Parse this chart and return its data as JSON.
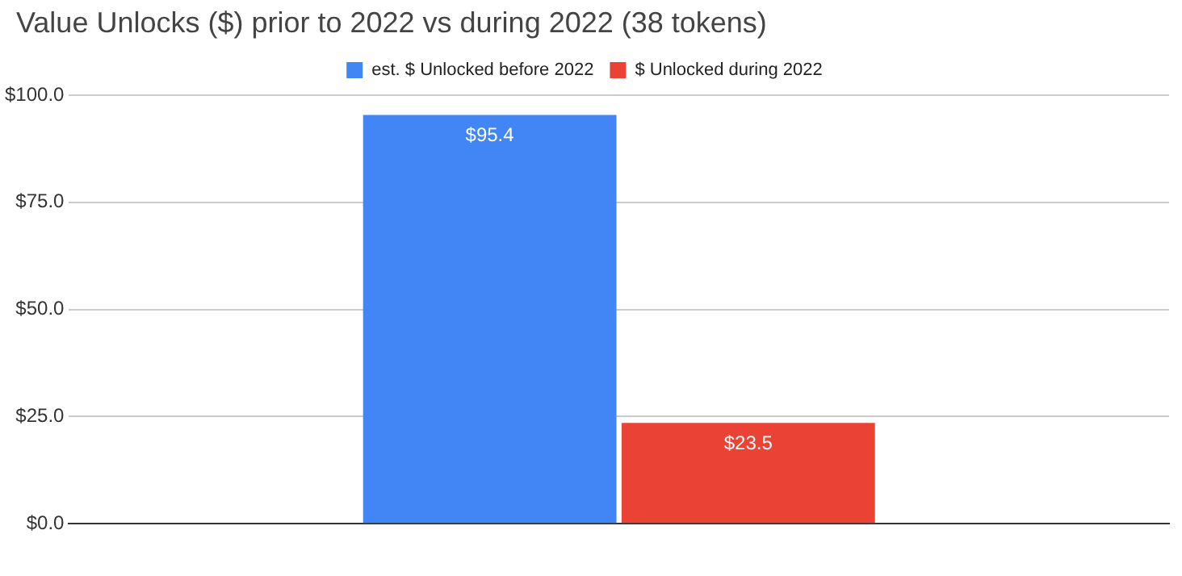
{
  "chart_data": {
    "type": "bar",
    "title": "Value Unlocks ($) prior to 2022 vs during 2022 (38 tokens)",
    "categories": [
      null
    ],
    "series": [
      {
        "name": "est. $ Unlocked before 2022",
        "color": "#4285f4",
        "values": [
          95.4
        ],
        "value_labels": [
          "$95.4"
        ]
      },
      {
        "name": "$ Unlocked during 2022",
        "color": "#ea4335",
        "values": [
          23.5
        ],
        "value_labels": [
          "$23.5"
        ]
      }
    ],
    "ylim": [
      0,
      100
    ],
    "yticks": [
      {
        "value": 0,
        "label": "$0.0"
      },
      {
        "value": 25,
        "label": "$25.0"
      },
      {
        "value": 50,
        "label": "$50.0"
      },
      {
        "value": 75,
        "label": "$75.0"
      },
      {
        "value": 100,
        "label": "$100.0"
      }
    ],
    "grid": "y",
    "legend": "top"
  }
}
